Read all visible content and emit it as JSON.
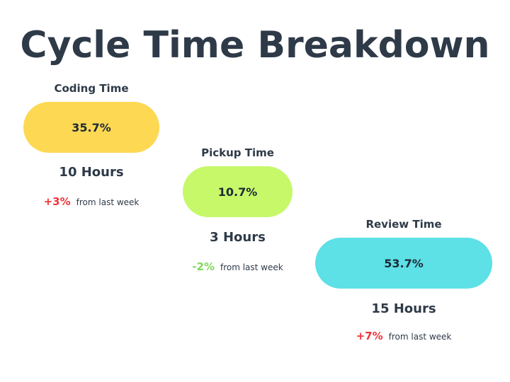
{
  "title": "Cycle Time Breakdown",
  "chart_data": {
    "type": "bar",
    "categories": [
      "Coding Time",
      "Pickup Time",
      "Review Time"
    ],
    "values": [
      35.7,
      10.7,
      53.7
    ],
    "unit": "%",
    "stages": [
      {
        "label": "Coding Time",
        "percent": "35.7%",
        "hours": "10 Hours",
        "change": "+3%",
        "change_note": "from last week",
        "color": "#fdd853",
        "change_color": "#f0343b"
      },
      {
        "label": "Pickup Time",
        "percent": "10.7%",
        "hours": "3 Hours",
        "change": "-2%",
        "change_note": "from last week",
        "color": "#c6f86a",
        "change_color": "#7ed957"
      },
      {
        "label": "Review Time",
        "percent": "53.7%",
        "hours": "15 Hours",
        "change": "+7%",
        "change_note": "from last week",
        "color": "#5de0e6",
        "change_color": "#f0343b"
      }
    ]
  }
}
